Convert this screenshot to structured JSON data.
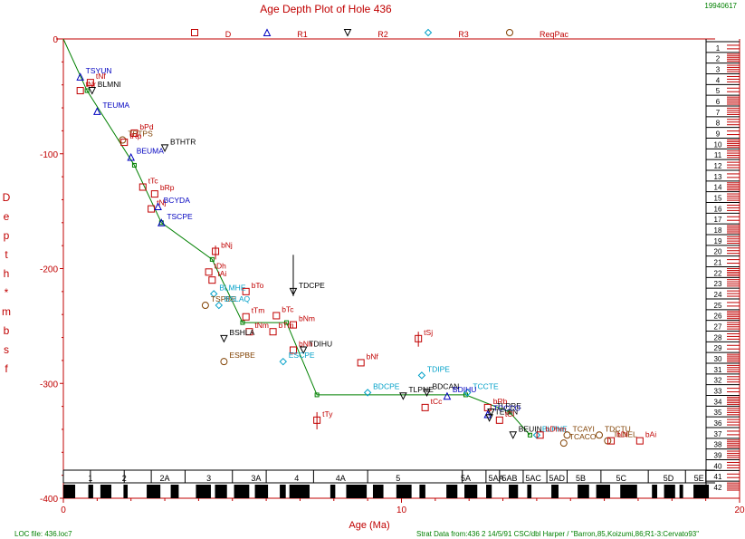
{
  "title": "Age Depth Plot of Hole 436",
  "date_stamp": "19940617",
  "footer_left": "LOC file: 436.loc7",
  "footer_right": "Strat Data from:436 2 14/5/91 CSC/dbl Harper /  \"Barron,85,Koizumi,86;R1-3:Cervato93\"",
  "colors": {
    "axis": "#c00000",
    "line": "#008000",
    "red": "#c00000",
    "blue": "#0000c0",
    "cyan": "#00a0c8",
    "brown": "#804000",
    "black": "#000000"
  },
  "legend": [
    {
      "symbol": "square",
      "label": "D",
      "color": "#c00000"
    },
    {
      "symbol": "triangle-up",
      "label": "R1",
      "color": "#0000c0"
    },
    {
      "symbol": "triangle-down",
      "label": "R2",
      "color": "#000000"
    },
    {
      "symbol": "diamond",
      "label": "R3",
      "color": "#00a0c8"
    },
    {
      "symbol": "circle",
      "label": "ReqPac",
      "color": "#804000"
    }
  ],
  "chart_data": {
    "type": "scatter",
    "title": "Age Depth Plot of Hole 436",
    "xlabel": "Age (Ma)",
    "ylabel": "Depth * mbsf",
    "xlim": [
      0,
      20
    ],
    "ylim": [
      -400,
      0
    ],
    "x_ticks": [
      "0",
      "10",
      "20"
    ],
    "y_ticks": [
      "0",
      "-100",
      "-200",
      "-300",
      "-400"
    ],
    "line_of_correlation": [
      [
        0,
        0
      ],
      [
        0.7,
        -45
      ],
      [
        2.1,
        -110
      ],
      [
        2.9,
        -160
      ],
      [
        4.4,
        -192
      ],
      [
        5.3,
        -247
      ],
      [
        6.6,
        -247
      ],
      [
        7.5,
        -310
      ],
      [
        11.9,
        -310
      ],
      [
        13.2,
        -325
      ],
      [
        13.8,
        -345
      ]
    ],
    "datums": [
      {
        "label": "TSYUN",
        "x": 0.5,
        "y": -33,
        "marker": "triangle-up",
        "color": "#0000c0"
      },
      {
        "label": "tNf",
        "x": 0.8,
        "y": -38,
        "marker": "square",
        "color": "#c00000"
      },
      {
        "label": "tNr",
        "x": 0.5,
        "y": -45,
        "marker": "square",
        "color": "#c00000"
      },
      {
        "label": "BLMNI",
        "x": 0.85,
        "y": -45,
        "marker": "triangle-down",
        "color": "#000000"
      },
      {
        "label": "TEUMA",
        "x": 1.0,
        "y": -63,
        "marker": "triangle-up",
        "color": "#0000c0"
      },
      {
        "label": "bPd",
        "x": 2.1,
        "y": -82,
        "marker": "square",
        "color": "#c00000"
      },
      {
        "label": "TPTPS",
        "x": 1.75,
        "y": -88,
        "marker": "circle",
        "color": "#804000"
      },
      {
        "label": "tRp",
        "x": 1.8,
        "y": -90,
        "marker": "square",
        "color": "#c00000"
      },
      {
        "label": "BTHTR",
        "x": 3.0,
        "y": -95,
        "marker": "triangle-down",
        "color": "#000000"
      },
      {
        "label": "BEUMA",
        "x": 2.0,
        "y": -103,
        "marker": "triangle-up",
        "color": "#0000c0"
      },
      {
        "label": "tTc",
        "x": 2.35,
        "y": -129,
        "marker": "square",
        "color": "#c00000"
      },
      {
        "label": "bRp",
        "x": 2.7,
        "y": -135,
        "marker": "square",
        "color": "#c00000"
      },
      {
        "label": "tNj",
        "x": 2.6,
        "y": -148,
        "marker": "square",
        "color": "#c00000"
      },
      {
        "label": "BCYDA",
        "x": 2.8,
        "y": -146,
        "marker": "triangle-up",
        "color": "#0000c0"
      },
      {
        "label": "TSCPE",
        "x": 2.9,
        "y": -160,
        "marker": "triangle-up",
        "color": "#0000c0"
      },
      {
        "label": "bNj",
        "x": 4.5,
        "y": -185,
        "marker": "square",
        "color": "#c00000"
      },
      {
        "label": "tDh",
        "x": 4.3,
        "y": -203,
        "marker": "square",
        "color": "#c00000"
      },
      {
        "label": "tAi",
        "x": 4.4,
        "y": -210,
        "marker": "square",
        "color": "#c00000"
      },
      {
        "label": "TDCPE",
        "x": 6.8,
        "y": -220,
        "marker": "triangle-down",
        "color": "#000000"
      },
      {
        "label": "bTo",
        "x": 5.4,
        "y": -220,
        "marker": "square",
        "color": "#c00000"
      },
      {
        "label": "BLMHE",
        "x": 4.45,
        "y": -222,
        "marker": "diamond",
        "color": "#00a0c8"
      },
      {
        "label": "TSPBE",
        "x": 4.2,
        "y": -232,
        "marker": "circle",
        "color": "#804000"
      },
      {
        "label": "BSLAQ",
        "x": 4.6,
        "y": -232,
        "marker": "diamond",
        "color": "#00a0c8"
      },
      {
        "label": "tTm",
        "x": 5.4,
        "y": -242,
        "marker": "square",
        "color": "#c00000"
      },
      {
        "label": "bTc",
        "x": 6.3,
        "y": -241,
        "marker": "square",
        "color": "#c00000"
      },
      {
        "label": "bNm",
        "x": 6.8,
        "y": -249,
        "marker": "square",
        "color": "#c00000"
      },
      {
        "label": "tNm",
        "x": 5.5,
        "y": -255,
        "marker": "square",
        "color": "#c00000"
      },
      {
        "label": "bTm",
        "x": 6.2,
        "y": -255,
        "marker": "square",
        "color": "#c00000"
      },
      {
        "label": "BSHLA",
        "x": 4.75,
        "y": -261,
        "marker": "triangle-down",
        "color": "#000000"
      },
      {
        "label": "bNh",
        "x": 6.8,
        "y": -271,
        "marker": "square",
        "color": "#c00000"
      },
      {
        "label": "TDIHU",
        "x": 7.1,
        "y": -271,
        "marker": "triangle-down",
        "color": "#000000"
      },
      {
        "label": "tSj",
        "x": 10.5,
        "y": -261,
        "marker": "square",
        "color": "#c00000"
      },
      {
        "label": "ESPBE",
        "x": 4.75,
        "y": -281,
        "marker": "circle",
        "color": "#804000"
      },
      {
        "label": "ESCPE",
        "x": 6.5,
        "y": -281,
        "marker": "diamond",
        "color": "#00a0c8"
      },
      {
        "label": "bNf",
        "x": 8.8,
        "y": -282,
        "marker": "square",
        "color": "#c00000"
      },
      {
        "label": "TDIPE",
        "x": 10.6,
        "y": -293,
        "marker": "diamond",
        "color": "#00a0c8"
      },
      {
        "label": "BDCPE",
        "x": 9.0,
        "y": -308,
        "marker": "diamond",
        "color": "#00a0c8"
      },
      {
        "label": "BDCAN",
        "x": 10.75,
        "y": -308,
        "marker": "triangle-down",
        "color": "#000000"
      },
      {
        "label": "TCCTE",
        "x": 11.95,
        "y": -308,
        "marker": "diamond",
        "color": "#00a0c8"
      },
      {
        "label": "TLPNE",
        "x": 10.05,
        "y": -311,
        "marker": "triangle-down",
        "color": "#000000"
      },
      {
        "label": "BDIHU",
        "x": 11.35,
        "y": -311,
        "marker": "triangle-up",
        "color": "#0000c0"
      },
      {
        "label": "tTy",
        "x": 7.5,
        "y": -332,
        "marker": "square",
        "color": "#c00000"
      },
      {
        "label": "tCc",
        "x": 10.7,
        "y": -321,
        "marker": "square",
        "color": "#c00000"
      },
      {
        "label": "bRb",
        "x": 12.55,
        "y": -321,
        "marker": "square",
        "color": "#c00000"
      },
      {
        "label": "TLPRE",
        "x": 12.65,
        "y": -325,
        "marker": "triangle-down",
        "color": "#000000"
      },
      {
        "label": "TCCCO",
        "x": 12.55,
        "y": -327,
        "marker": "triangle-up",
        "color": "#0000c0"
      },
      {
        "label": "TEUIN",
        "x": 12.6,
        "y": -330,
        "marker": "triangle-down",
        "color": "#000000"
      },
      {
        "label": "tCl",
        "x": 12.9,
        "y": -332,
        "marker": "square",
        "color": "#c00000"
      },
      {
        "label": "BEUIN",
        "x": 13.3,
        "y": -345,
        "marker": "triangle-down",
        "color": "#000000"
      },
      {
        "label": "BLPNE",
        "x": 14.0,
        "y": -345,
        "marker": "diamond",
        "color": "#00a0c8"
      },
      {
        "label": "bDhm",
        "x": 14.1,
        "y": -345,
        "marker": "square",
        "color": "#c00000"
      },
      {
        "label": "TCAYI",
        "x": 14.9,
        "y": -345,
        "marker": "circle",
        "color": "#804000"
      },
      {
        "label": "TDCTU",
        "x": 15.85,
        "y": -345,
        "marker": "circle",
        "color": "#804000"
      },
      {
        "label": "TCACO",
        "x": 14.8,
        "y": -352,
        "marker": "circle",
        "color": "#804000"
      },
      {
        "label": "TLNEL",
        "x": 16.1,
        "y": -350,
        "marker": "circle",
        "color": "#804000"
      },
      {
        "label": "bDl",
        "x": 16.2,
        "y": -350,
        "marker": "square",
        "color": "#c00000"
      },
      {
        "label": "bAi",
        "x": 17.05,
        "y": -350,
        "marker": "square",
        "color": "#c00000"
      }
    ],
    "chrons": [
      {
        "label": "1",
        "x": 0.8
      },
      {
        "label": "2",
        "x": 1.8
      },
      {
        "label": "2A",
        "x": 3.0
      },
      {
        "label": "3",
        "x": 4.3
      },
      {
        "label": "3A",
        "x": 5.7
      },
      {
        "label": "4",
        "x": 6.9
      },
      {
        "label": "4A",
        "x": 8.2
      },
      {
        "label": "5",
        "x": 9.9
      },
      {
        "label": "5A",
        "x": 11.9
      },
      {
        "label": "5AA",
        "x": 12.8
      },
      {
        "label": "5AB",
        "x": 13.2
      },
      {
        "label": "5AC",
        "x": 13.9
      },
      {
        "label": "5AD",
        "x": 14.6
      },
      {
        "label": "5B",
        "x": 15.3
      },
      {
        "label": "5C",
        "x": 16.5
      },
      {
        "label": "5D",
        "x": 17.9
      },
      {
        "label": "5E",
        "x": 18.8
      }
    ],
    "cores": [
      "1",
      "2",
      "3",
      "4",
      "5",
      "6",
      "7",
      "8",
      "9",
      "10",
      "11",
      "12",
      "13",
      "14",
      "15",
      "16",
      "17",
      "18",
      "19",
      "20",
      "21",
      "22",
      "23",
      "24",
      "25",
      "26",
      "27",
      "28",
      "29",
      "30",
      "31",
      "32",
      "33",
      "34",
      "35",
      "36",
      "37",
      "38",
      "39",
      "40",
      "41",
      "42"
    ]
  }
}
